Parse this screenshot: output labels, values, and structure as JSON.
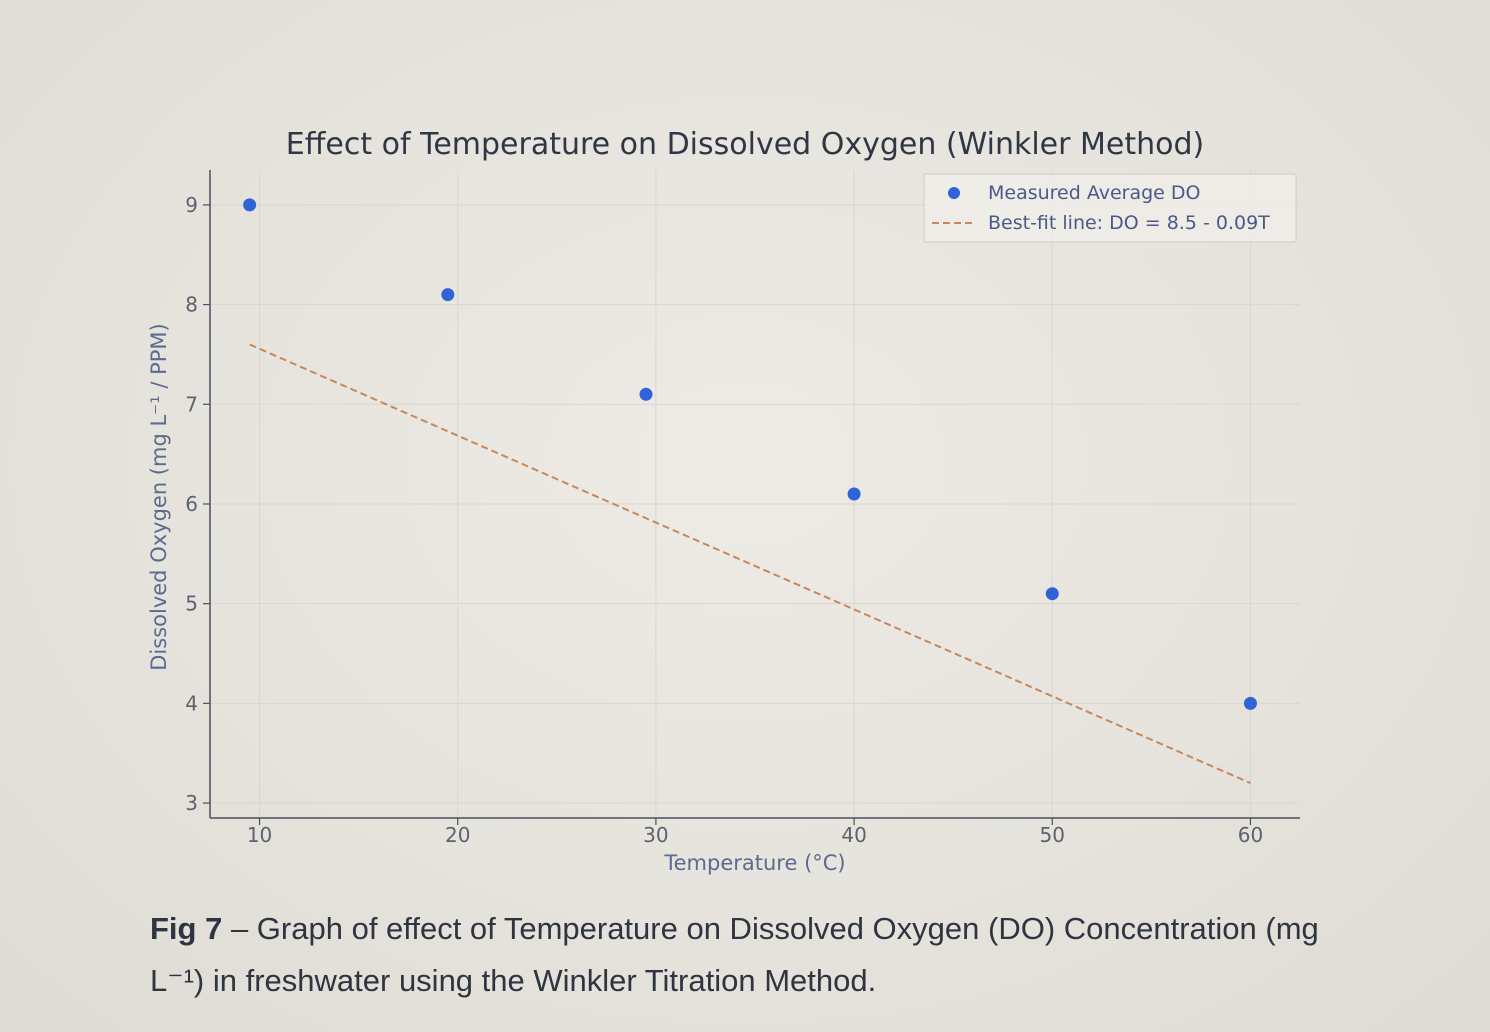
{
  "chart_data": {
    "type": "scatter",
    "title": "Effect of Temperature on Dissolved Oxygen (Winkler Method)",
    "xlabel": "Temperature (°C)",
    "ylabel": "Dissolved Oxygen (mg L⁻¹ / PPM)",
    "xlim": [
      7.5,
      62.5
    ],
    "ylim": [
      2.85,
      9.35
    ],
    "x_ticks": [
      10,
      20,
      30,
      40,
      50,
      60
    ],
    "y_ticks": [
      3,
      4,
      5,
      6,
      7,
      8,
      9
    ],
    "grid": true,
    "legend_position": "top-right",
    "series": [
      {
        "name": "Measured Average DO",
        "kind": "scatter",
        "color": "#2f63d6",
        "points": [
          {
            "x": 9.5,
            "y": 9.0
          },
          {
            "x": 19.5,
            "y": 8.1
          },
          {
            "x": 29.5,
            "y": 7.1
          },
          {
            "x": 40,
            "y": 6.1
          },
          {
            "x": 50,
            "y": 5.1
          },
          {
            "x": 60,
            "y": 4.0
          }
        ]
      },
      {
        "name": "Best-fit line: DO = 8.5 - 0.09T",
        "kind": "line",
        "style": "dashed",
        "color": "#c9875a",
        "points": [
          {
            "x": 9.5,
            "y": 7.6
          },
          {
            "x": 60,
            "y": 3.2
          }
        ]
      }
    ]
  },
  "caption": {
    "fig_number": "Fig 7",
    "text": " – Graph of effect of Temperature on Dissolved Oxygen (DO) Concentration (mg L⁻¹) in freshwater using the Winkler Titration Method."
  }
}
